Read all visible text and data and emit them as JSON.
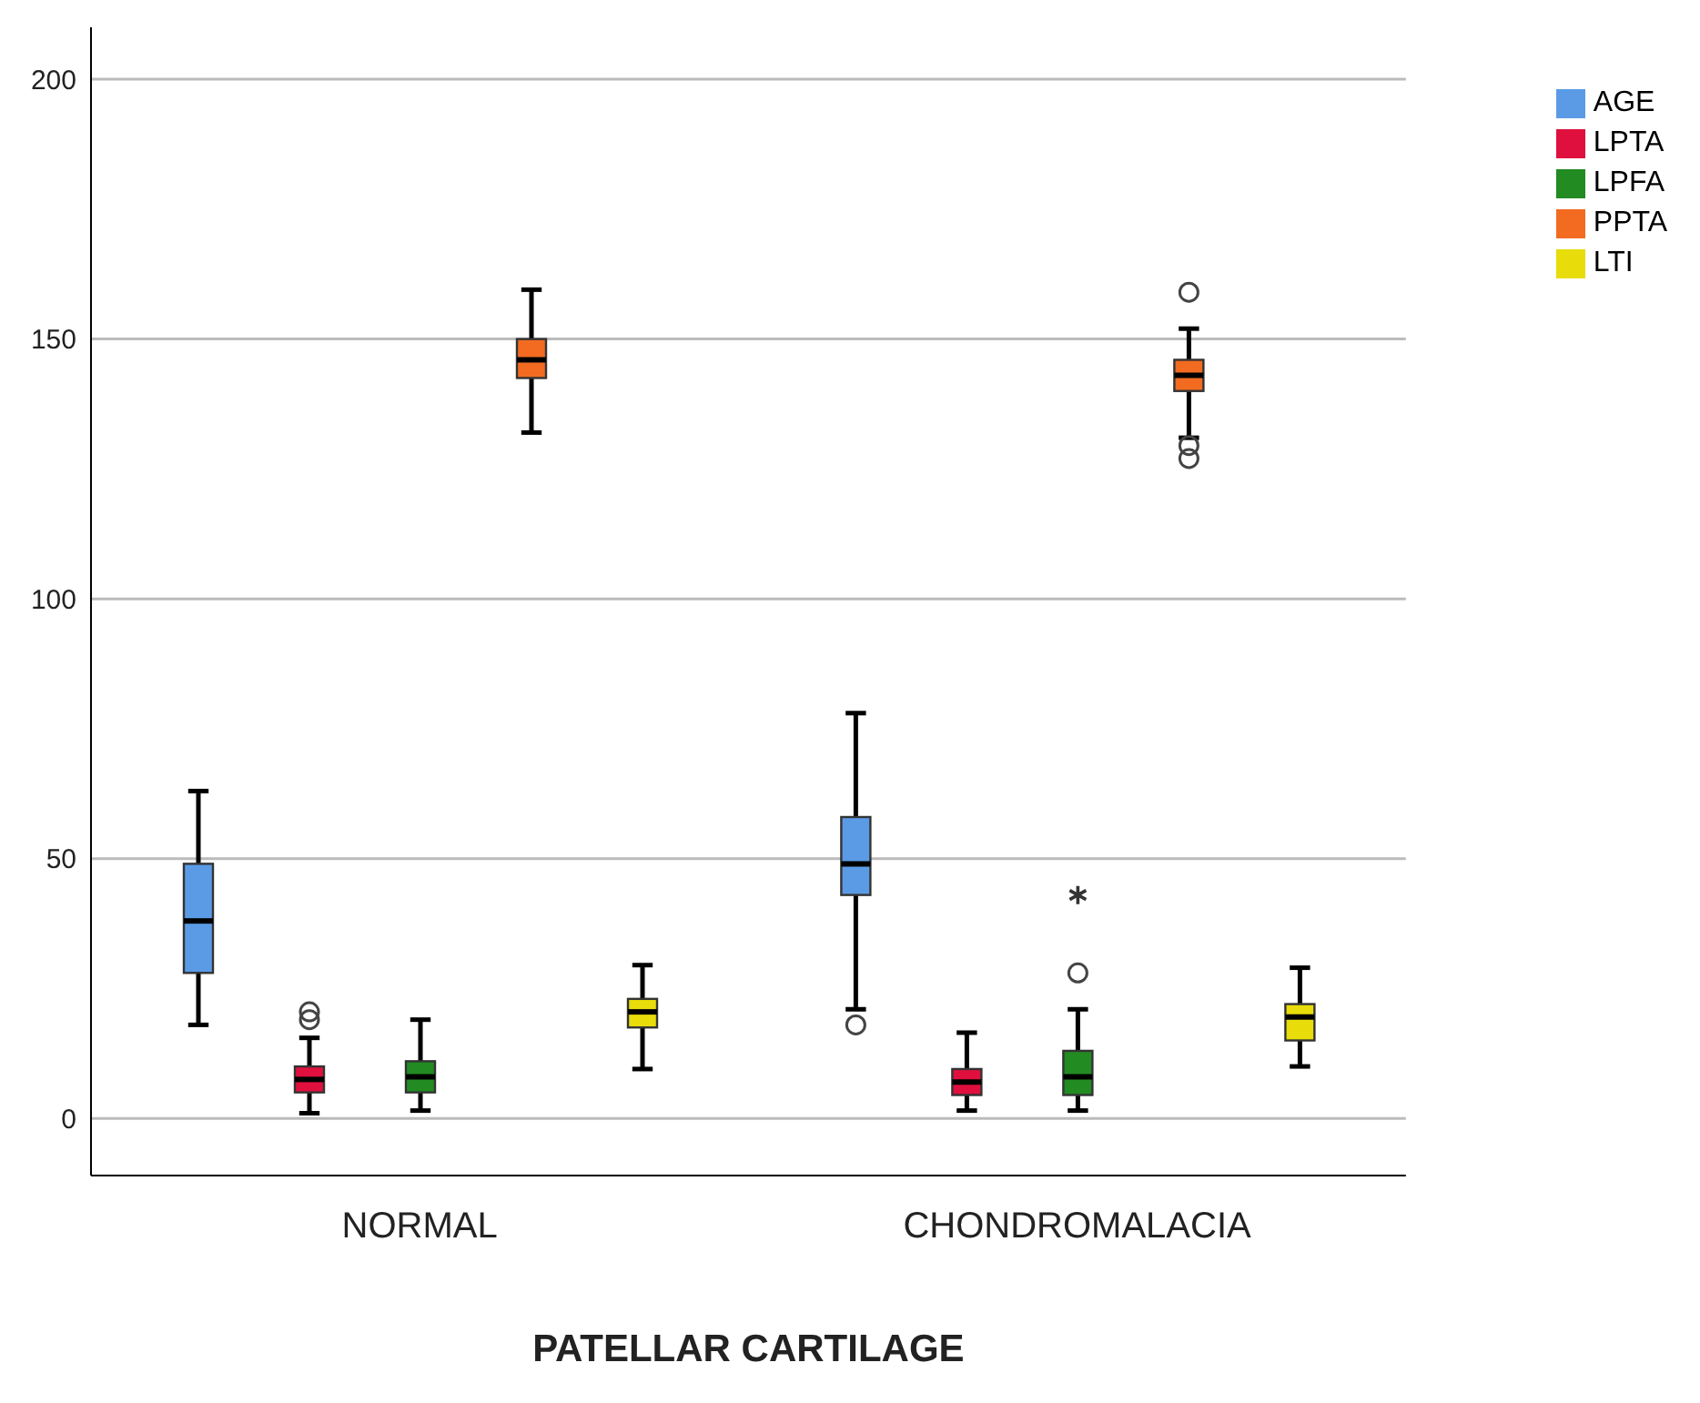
{
  "chart_data": {
    "type": "box",
    "xlabel": "PATELLAR CARTILAGE",
    "categories": [
      "NORMAL",
      "CHONDROMALACIA"
    ],
    "series": [
      {
        "name": "AGE",
        "color": "#5b9be6",
        "boxes": [
          {
            "low": 18,
            "q1": 28,
            "median": 38,
            "q3": 49,
            "high": 63
          },
          {
            "low": 21,
            "q1": 43,
            "median": 49,
            "q3": 58,
            "high": 78,
            "outliers": [
              18
            ]
          }
        ]
      },
      {
        "name": "LPTA",
        "color": "#e0103e",
        "boxes": [
          {
            "low": 1,
            "q1": 5,
            "median": 7.5,
            "q3": 10,
            "high": 15.5,
            "outliers": [
              19,
              20.5
            ]
          },
          {
            "low": 1.5,
            "q1": 4.5,
            "median": 7,
            "q3": 9.5,
            "high": 16.5
          }
        ]
      },
      {
        "name": "LPFA",
        "color": "#228b22",
        "boxes": [
          {
            "low": 1.5,
            "q1": 5,
            "median": 8,
            "q3": 11,
            "high": 19
          },
          {
            "low": 1.5,
            "q1": 4.5,
            "median": 8,
            "q3": 13,
            "high": 21,
            "outliers": [
              28,
              43
            ]
          }
        ]
      },
      {
        "name": "PPTA",
        "color": "#f26b21",
        "boxes": [
          {
            "low": 132,
            "q1": 142.5,
            "median": 146,
            "q3": 150,
            "high": 159.5
          },
          {
            "low": 131,
            "q1": 140,
            "median": 143,
            "q3": 146,
            "high": 152,
            "outliers": [
              159,
              129.5,
              127
            ]
          }
        ]
      },
      {
        "name": "LTI",
        "color": "#e8dc0a",
        "boxes": [
          {
            "low": 9.5,
            "q1": 17.5,
            "median": 20.5,
            "q3": 23,
            "high": 29.5
          },
          {
            "low": 10,
            "q1": 15,
            "median": 19.5,
            "q3": 22,
            "high": 29
          }
        ]
      }
    ],
    "ylim": [
      -11,
      210
    ],
    "yticks": [
      0,
      50,
      100,
      150,
      200
    ],
    "grid": "y",
    "legend": "top right"
  }
}
